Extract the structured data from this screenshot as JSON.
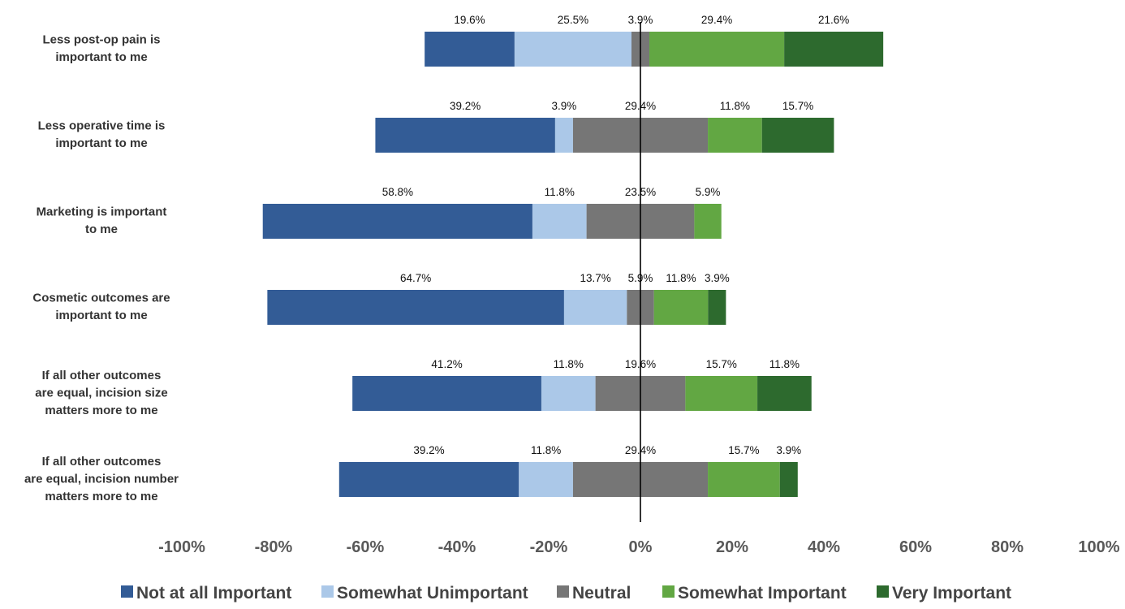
{
  "chart_data": {
    "type": "bar",
    "orientation": "horizontal",
    "stacked": "diverging",
    "categories": [
      [
        "Less post-op pain is",
        "important to me"
      ],
      [
        "Less operative time is",
        "important to me"
      ],
      [
        "Marketing is important",
        "to me"
      ],
      [
        "Cosmetic outcomes are",
        "important to me"
      ],
      [
        "If all other outcomes",
        "are equal, incision size",
        "matters more to me"
      ],
      [
        "If all other outcomes",
        "are equal, incision number",
        "matters more to me"
      ]
    ],
    "series": [
      {
        "name": "Not at all Important",
        "color": "#335C96",
        "values": [
          19.6,
          39.2,
          58.8,
          64.7,
          41.2,
          39.2
        ]
      },
      {
        "name": "Somewhat Unimportant",
        "color": "#ABC8E8",
        "values": [
          25.5,
          3.9,
          11.8,
          13.7,
          11.8,
          11.8
        ]
      },
      {
        "name": "Neutral",
        "color": "#767676",
        "values": [
          3.9,
          29.4,
          23.5,
          5.9,
          19.6,
          29.4
        ]
      },
      {
        "name": "Somewhat Important",
        "color": "#62A743",
        "values": [
          29.4,
          11.8,
          5.9,
          11.8,
          15.7,
          15.7
        ]
      },
      {
        "name": "Very Important",
        "color": "#2D6A2E",
        "values": [
          21.6,
          15.7,
          0,
          3.9,
          11.8,
          3.9
        ]
      }
    ],
    "data_labels": [
      [
        "19.6%",
        "25.5%",
        "3.9%",
        "29.4%",
        "21.6%"
      ],
      [
        "39.2%",
        "3.9%",
        "29.4%",
        "11.8%",
        "15.7%"
      ],
      [
        "58.8%",
        "11.8%",
        "23.5%",
        "5.9%",
        ""
      ],
      [
        "64.7%",
        "13.7%",
        "5.9%",
        "11.8%",
        "3.9%"
      ],
      [
        "41.2%",
        "11.8%",
        "19.6%",
        "15.7%",
        "11.8%"
      ],
      [
        "39.2%",
        "11.8%",
        "29.4%",
        "15.7%",
        "3.9%"
      ]
    ],
    "xlim": [
      -100,
      100
    ],
    "xticks": [
      -100,
      -80,
      -60,
      -40,
      -20,
      0,
      20,
      40,
      60,
      80,
      100
    ],
    "xtick_labels": [
      "-100%",
      "-80%",
      "-60%",
      "-40%",
      "-20%",
      "0%",
      "20%",
      "40%",
      "60%",
      "80%",
      "100%"
    ],
    "grid": false,
    "legend_position": "bottom",
    "title": "",
    "xlabel": "",
    "ylabel": ""
  }
}
